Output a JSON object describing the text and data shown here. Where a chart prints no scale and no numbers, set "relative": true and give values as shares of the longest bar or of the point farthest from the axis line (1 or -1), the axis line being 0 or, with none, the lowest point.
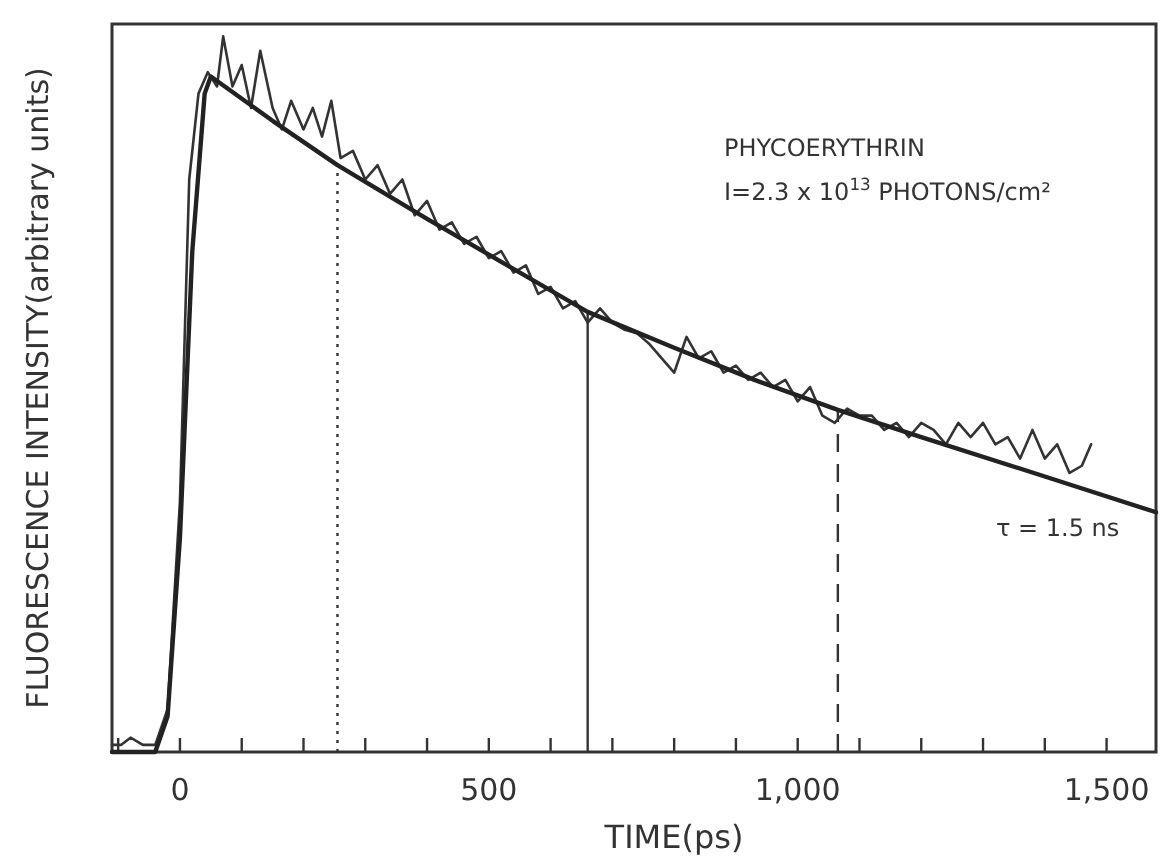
{
  "chart_data": {
    "type": "line",
    "relative": true,
    "xlabel": "TIME(ps)",
    "ylabel": "FLUORESCENCE INTENSITY(arbitrary units)",
    "xlim": [
      -110,
      1580
    ],
    "xticks": [
      {
        "value": -100,
        "label": null
      },
      0,
      {
        "value": 100,
        "label": null
      },
      {
        "value": 200,
        "label": null
      },
      {
        "value": 300,
        "label": null
      },
      {
        "value": 400,
        "label": null
      },
      500,
      {
        "value": 600,
        "label": null
      },
      {
        "value": 700,
        "label": null
      },
      {
        "value": 800,
        "label": null
      },
      {
        "value": 900,
        "label": null
      },
      {
        "value": 1000,
        "label": "1,000"
      },
      {
        "value": 1100,
        "label": null
      },
      {
        "value": 1200,
        "label": null
      },
      {
        "value": 1300,
        "label": null
      },
      {
        "value": 1400,
        "label": null
      },
      {
        "value": 1500,
        "label": "1,500"
      }
    ],
    "grid": false,
    "series": [
      {
        "color": "#333333",
        "line_style": "solid",
        "x": [
          -110,
          -95,
          -80,
          -60,
          -40,
          -20,
          0,
          15,
          30,
          45,
          60,
          70,
          85,
          100,
          115,
          130,
          150,
          165,
          180,
          200,
          215,
          230,
          245,
          260,
          280,
          300,
          320,
          340,
          360,
          380,
          400,
          420,
          440,
          460,
          480,
          500,
          520,
          540,
          560,
          580,
          600,
          620,
          640,
          660,
          680,
          700,
          720,
          740,
          760,
          780,
          800,
          820,
          840,
          860,
          880,
          900,
          920,
          940,
          960,
          980,
          1000,
          1020,
          1040,
          1060,
          1080,
          1100,
          1120,
          1140,
          1160,
          1180,
          1200,
          1220,
          1240,
          1260,
          1280,
          1300,
          1320,
          1340,
          1360,
          1380,
          1400,
          1420,
          1440,
          1460,
          1475
        ],
        "values": [
          0.01,
          0.01,
          0.02,
          0.01,
          0.01,
          0.06,
          0.35,
          0.8,
          0.92,
          0.95,
          0.93,
          1,
          0.93,
          0.96,
          0.9,
          0.98,
          0.9,
          0.87,
          0.91,
          0.87,
          0.9,
          0.86,
          0.91,
          0.83,
          0.84,
          0.8,
          0.82,
          0.78,
          0.8,
          0.75,
          0.77,
          0.73,
          0.74,
          0.71,
          0.72,
          0.69,
          0.7,
          0.67,
          0.68,
          0.64,
          0.65,
          0.62,
          0.63,
          0.6,
          0.62,
          0.6,
          0.59,
          0.585,
          0.57,
          0.55,
          0.53,
          0.58,
          0.55,
          0.56,
          0.53,
          0.54,
          0.52,
          0.53,
          0.51,
          0.52,
          0.49,
          0.51,
          0.47,
          0.46,
          0.48,
          0.47,
          0.47,
          0.45,
          0.46,
          0.44,
          0.46,
          0.45,
          0.43,
          0.46,
          0.44,
          0.46,
          0.43,
          0.44,
          0.41,
          0.45,
          0.41,
          0.43,
          0.39,
          0.4,
          0.43
        ]
      },
      {
        "type": "line",
        "color": "#222222",
        "line_style": "solid",
        "x": [
          -110,
          -40,
          -20,
          0,
          20,
          40,
          50,
          150,
          255,
          400,
          530,
          660,
          800,
          930,
          1065,
          1200,
          1400,
          1580
        ],
        "values": [
          0,
          0,
          0.05,
          0.3,
          0.7,
          0.92,
          0.944,
          0.882,
          0.82,
          0.745,
          0.68,
          0.615,
          0.565,
          0.52,
          0.478,
          0.44,
          0.385,
          0.335
        ]
      }
    ],
    "ref_lines": [
      {
        "axis": "x",
        "value": 255,
        "color": "#333333",
        "line_style": "dotted"
      },
      {
        "axis": "x",
        "value": 660,
        "color": "#333333",
        "line_style": "solid"
      },
      {
        "axis": "x",
        "value": 1065,
        "color": "#333333",
        "line_style": "dashed"
      }
    ],
    "annotations": [
      "PHYCOERYTHRIN",
      "I=2.3 x 10$^{13}$ PHOTONS/cm²",
      "τ = 1.5 ns"
    ]
  }
}
